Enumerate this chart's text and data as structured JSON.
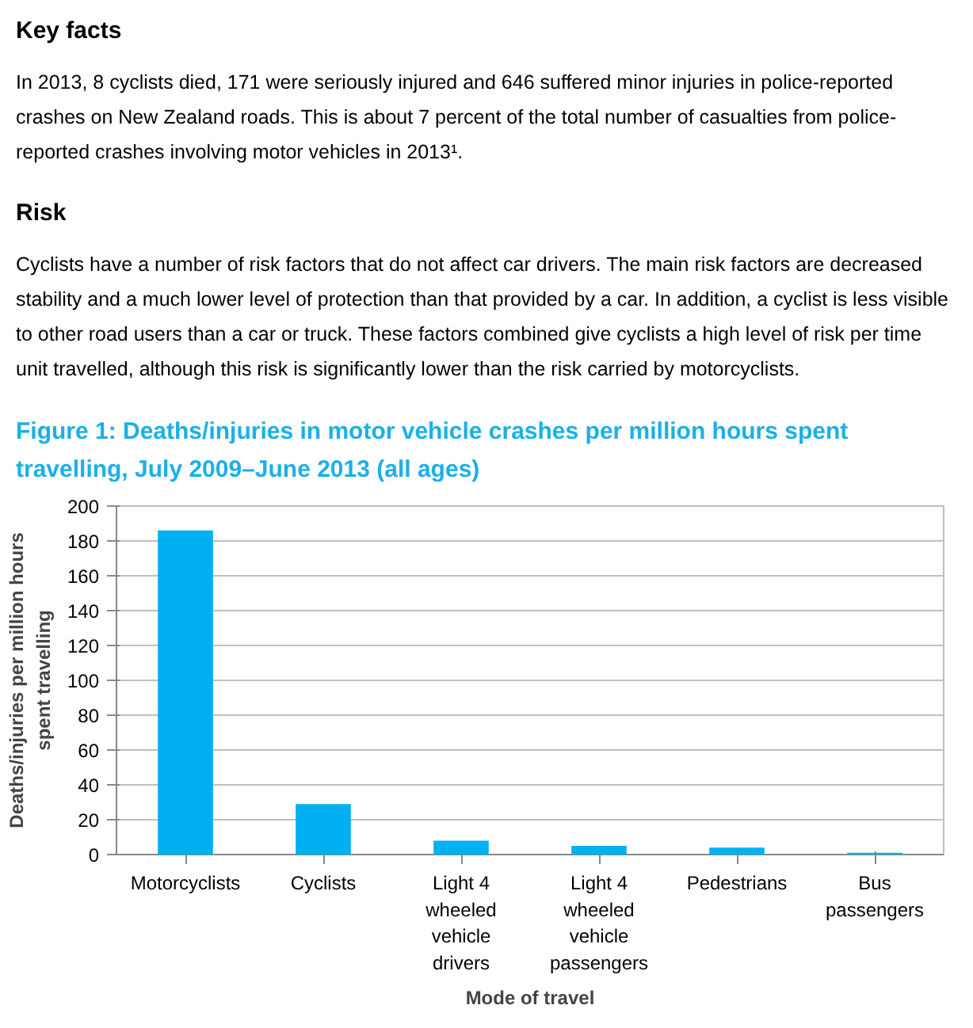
{
  "chart_data": {
    "type": "bar",
    "title": "Figure 1: Deaths/injuries in motor vehicle crashes per million hours spent travelling, July 2009–June 2013 (all ages)",
    "annotations": [
      "Key facts",
      "In 2013, 8 cyclists died, 171 were seriously injured and 646 suffered minor injuries in police-reported crashes on New Zealand roads. This is about 7 percent of the total number of casualties from police-reported crashes involving motor vehicles in 2013¹.",
      "Risk",
      "Cyclists have a number of risk factors that do not affect car drivers. The main risk factors are decreased stability and a much lower level of protection than that provided by a car. In addition, a cyclist is less visible to other road users than a car or truck. These factors combined give cyclists a high level of risk per time unit travelled, although this risk is significantly lower than the risk carried by motorcyclists."
    ],
    "xlabel": "Mode of travel",
    "ylabel": "Deaths/injuries per million hours spent travelling",
    "categories": [
      "Motorcyclists",
      "Cyclists",
      "Light 4 wheeled vehicle drivers",
      "Light 4 wheeled vehicle passengers",
      "Pedestrians",
      "Bus passengers"
    ],
    "values": [
      186,
      29,
      8,
      5,
      4,
      1
    ],
    "color": "#00b0f0",
    "ylim": [
      0,
      200
    ],
    "yticks": [
      0,
      20,
      40,
      60,
      80,
      100,
      120,
      140,
      160,
      180,
      200
    ],
    "grid": "y"
  }
}
